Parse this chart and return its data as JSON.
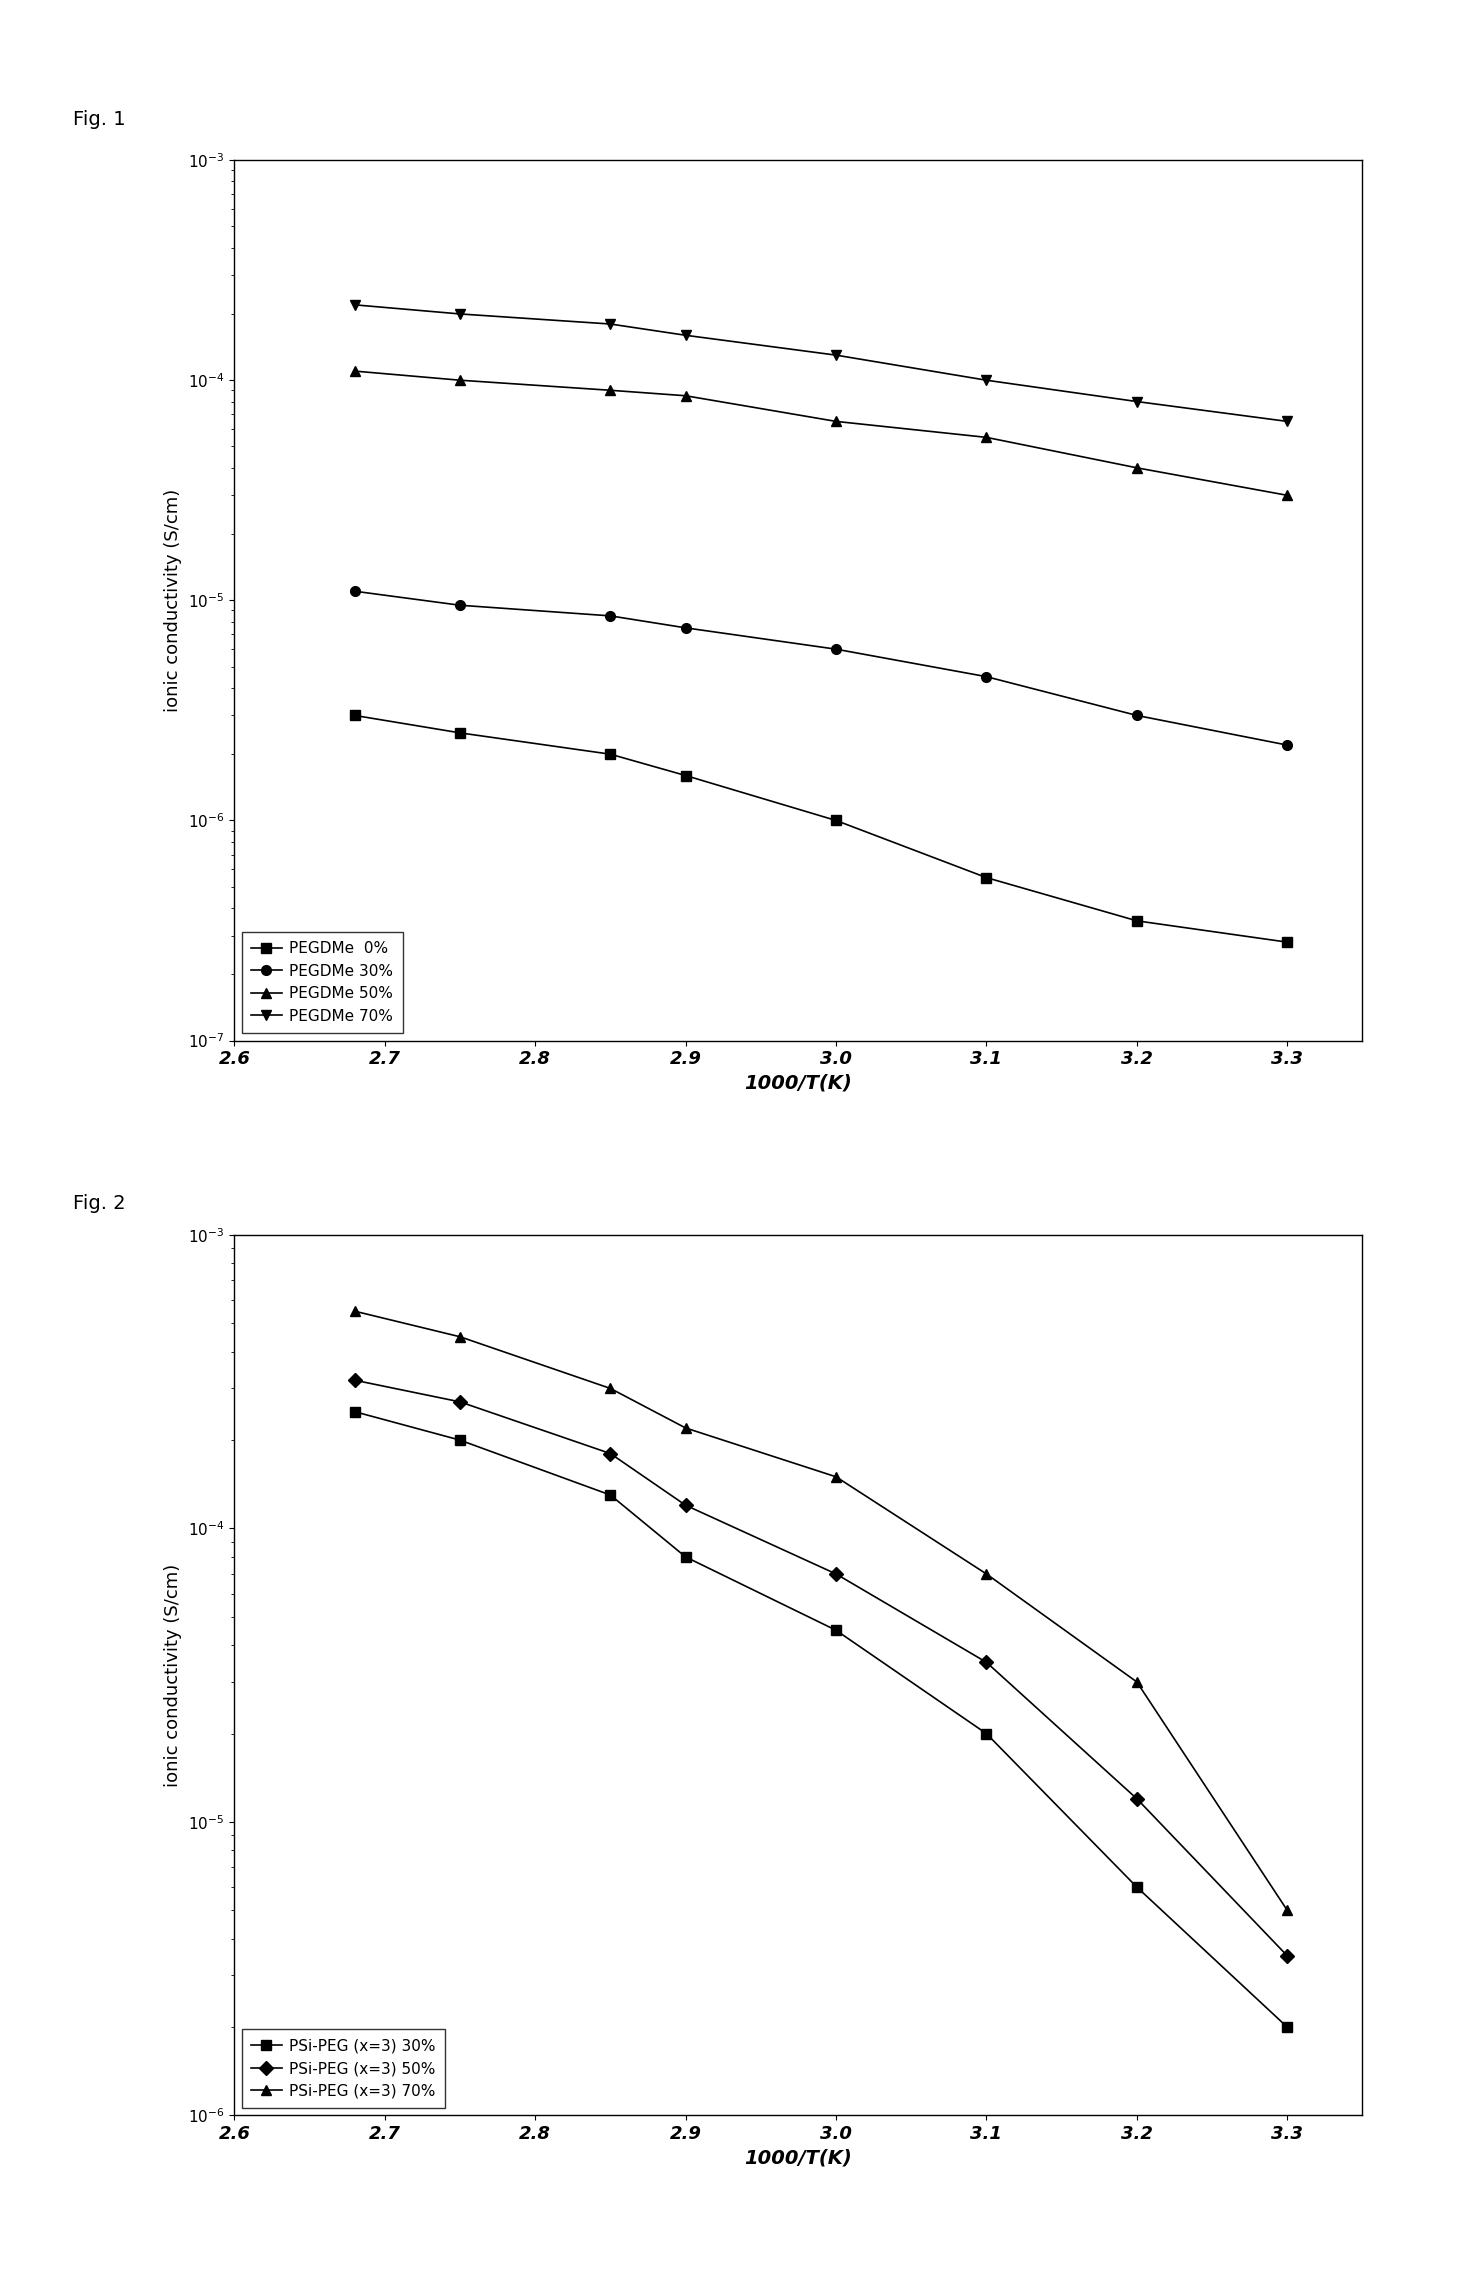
{
  "fig1_title": "Fig. 1",
  "fig2_title": "Fig. 2",
  "xlabel": "1000/T(K)",
  "ylabel": "ionic conductivity (S/cm)",
  "fig1_x": [
    2.68,
    2.75,
    2.85,
    2.9,
    3.0,
    3.1,
    3.2,
    3.3
  ],
  "fig1_series": [
    {
      "label": "PEGDMe  0%",
      "marker": "s",
      "y": [
        3e-06,
        2.5e-06,
        2e-06,
        1.6e-06,
        1e-06,
        5.5e-07,
        3.5e-07,
        2.8e-07
      ]
    },
    {
      "label": "PEGDMe 30%",
      "marker": "o",
      "y": [
        1.1e-05,
        9.5e-06,
        8.5e-06,
        7.5e-06,
        6e-06,
        4.5e-06,
        3e-06,
        2.2e-06
      ]
    },
    {
      "label": "PEGDMe 50%",
      "marker": "^",
      "y": [
        0.00011,
        0.0001,
        9e-05,
        8.5e-05,
        6.5e-05,
        5.5e-05,
        4e-05,
        3e-05
      ]
    },
    {
      "label": "PEGDMe 70%",
      "marker": "v",
      "y": [
        0.00022,
        0.0002,
        0.00018,
        0.00016,
        0.00013,
        0.0001,
        8e-05,
        6.5e-05
      ]
    }
  ],
  "fig2_x": [
    2.68,
    2.75,
    2.85,
    2.9,
    3.0,
    3.1,
    3.2,
    3.3
  ],
  "fig2_series": [
    {
      "label": "PSi-PEG (x=3) 30%",
      "marker": "s",
      "y": [
        0.00025,
        0.0002,
        0.00013,
        8e-05,
        4.5e-05,
        2e-05,
        6e-06,
        2e-06
      ]
    },
    {
      "label": "PSi-PEG (x=3) 50%",
      "marker": "D",
      "y": [
        0.00032,
        0.00027,
        0.00018,
        0.00012,
        7e-05,
        3.5e-05,
        1.2e-05,
        3.5e-06
      ]
    },
    {
      "label": "PSi-PEG (x=3) 70%",
      "marker": "^",
      "y": [
        0.00055,
        0.00045,
        0.0003,
        0.00022,
        0.00015,
        7e-05,
        3e-05,
        5e-06
      ]
    }
  ],
  "line_color": "#000000",
  "bg_color": "#ffffff",
  "fig1_ylim": [
    1e-07,
    0.001
  ],
  "fig2_ylim": [
    1e-06,
    0.001
  ],
  "xlim": [
    2.6,
    3.35
  ],
  "xticks": [
    2.6,
    2.7,
    2.8,
    2.9,
    3.0,
    3.1,
    3.2,
    3.3
  ],
  "xtick_labels": [
    "2.6",
    "2.7",
    "2.8",
    "2.9",
    "3.0",
    "3.1",
    "3.2",
    "3.3"
  ],
  "figsize": [
    14.65,
    22.87
  ],
  "dpi": 100
}
